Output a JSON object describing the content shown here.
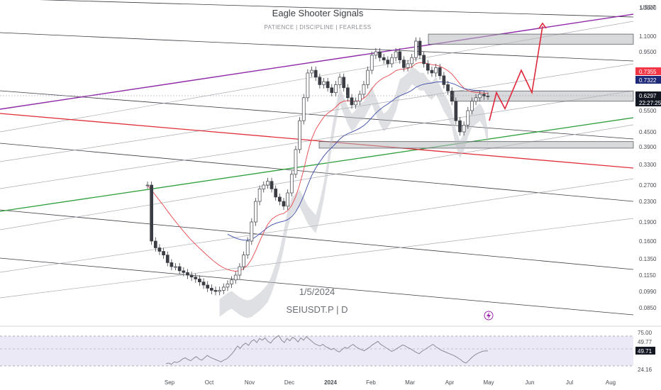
{
  "header": {
    "title": "Eagle Shooter Signals",
    "subtitle": "PATIENCE  |  DISCIPLINE  |  FEARLESS"
  },
  "watermark": {
    "date": "1/5/2024",
    "symbol": "SEIUSDT.P  |  D"
  },
  "colors": {
    "background": "#ffffff",
    "up": "#3b3d44",
    "down": "#3b3d44",
    "ema_fast": "#e8474c",
    "ema_slow": "#3d4aa8",
    "cloud": "#b9bbc0",
    "channel_main": "#8e2aa6",
    "support_green": "#2e9e3a",
    "resistance_red": "#e0303a",
    "projection": "#e0263a",
    "tag_red": "#f23645",
    "tag_navy": "#1e2a78",
    "tag_dark": "#131722",
    "rsi_band": "#ece9f7",
    "rsi_line": "#8a8d94",
    "rsi_overbought_mark": "#26a69a"
  },
  "price_axis": {
    "unit_label": "USDT",
    "ticks": [
      "1.3000",
      "1.1000",
      "0.9500",
      "0.7355",
      "0.7322",
      "0.6297",
      "22:27:25",
      "0.5500",
      "0.4500",
      "0.3900",
      "0.3300",
      "0.2700",
      "0.2300",
      "0.1900",
      "0.1600",
      "0.1350",
      "0.1150",
      "0.0990",
      "0.0850"
    ],
    "price_tags": [
      {
        "label": "0.7355",
        "kind": "red"
      },
      {
        "label": "0.7322",
        "kind": "navy"
      },
      {
        "label": "0.6297",
        "kind": "dark"
      },
      {
        "label": "22:27:25",
        "kind": "dark"
      }
    ],
    "scale": "log"
  },
  "time_axis": {
    "labels": [
      "Sep",
      "Oct",
      "Nov",
      "Dec",
      "2024",
      "Feb",
      "Mar",
      "Apr",
      "May",
      "Jun",
      "Jul",
      "Aug"
    ]
  },
  "rsi": {
    "levels": [
      "75.00",
      "49.77",
      "49.71",
      "24.16"
    ],
    "current": "49.71",
    "values": [
      28,
      29,
      27,
      31,
      30,
      32,
      36,
      38,
      35,
      33,
      37,
      40,
      36,
      34,
      38,
      42,
      39,
      37,
      35,
      33,
      31,
      34,
      36,
      40,
      45,
      51,
      58,
      54,
      60,
      63,
      59,
      66,
      69,
      64,
      71,
      68,
      72,
      66,
      63,
      69,
      73,
      76,
      68,
      64,
      71,
      67,
      73,
      70,
      65,
      72,
      68,
      74,
      70,
      66,
      62,
      60,
      58,
      61,
      57,
      55,
      52,
      54,
      50,
      48,
      52,
      56,
      54,
      58,
      61,
      57,
      54,
      52,
      50,
      53,
      56,
      60,
      63,
      66,
      61,
      58,
      55,
      52,
      49,
      51,
      54,
      57,
      60,
      58,
      55,
      53,
      50,
      47,
      45,
      49,
      52,
      55,
      58,
      61,
      57,
      54,
      51,
      49,
      47,
      45,
      43,
      41,
      38,
      35,
      31,
      29,
      33,
      38,
      42,
      45,
      47,
      49,
      50,
      49.7
    ]
  },
  "chart_data": {
    "type": "candlestick",
    "title": "Eagle Shooter Signals",
    "symbol": "SEIUSDT.P",
    "interval": "D",
    "date_marker": "1/5/2024",
    "y_scale": "log",
    "ylim": [
      0.075,
      1.45
    ],
    "x_labels": [
      "Sep",
      "Oct",
      "Nov",
      "Dec",
      "2024",
      "Feb",
      "Mar",
      "Apr",
      "May",
      "Jun",
      "Jul",
      "Aug"
    ],
    "last_price": 0.6297,
    "countdown": "22:27:25",
    "price_series": [
      0.27,
      0.16,
      0.15,
      0.145,
      0.14,
      0.13,
      0.125,
      0.125,
      0.12,
      0.118,
      0.115,
      0.113,
      0.111,
      0.108,
      0.105,
      0.102,
      0.1,
      0.099,
      0.1,
      0.103,
      0.106,
      0.11,
      0.115,
      0.125,
      0.14,
      0.16,
      0.19,
      0.23,
      0.26,
      0.27,
      0.28,
      0.26,
      0.24,
      0.23,
      0.22,
      0.25,
      0.3,
      0.38,
      0.5,
      0.62,
      0.78,
      0.8,
      0.75,
      0.7,
      0.72,
      0.68,
      0.65,
      0.7,
      0.75,
      0.68,
      0.62,
      0.58,
      0.6,
      0.64,
      0.7,
      0.8,
      0.92,
      0.95,
      0.9,
      0.88,
      0.85,
      0.9,
      0.95,
      0.88,
      0.82,
      0.85,
      0.9,
      1.05,
      0.92,
      0.85,
      0.8,
      0.78,
      0.82,
      0.76,
      0.7,
      0.66,
      0.6,
      0.5,
      0.45,
      0.48,
      0.55,
      0.6,
      0.62,
      0.64,
      0.63,
      0.6297
    ],
    "price_tags": [
      0.7355,
      0.7322,
      0.6297
    ],
    "zones": [
      {
        "from": 1.02,
        "to": 1.12
      },
      {
        "from": 0.6,
        "to": 0.66
      },
      {
        "from": 0.385,
        "to": 0.41
      }
    ],
    "projection_path": [
      0.5,
      0.65,
      0.56,
      0.8,
      0.65,
      1.2
    ],
    "rsi_levels": [
      75,
      24.16
    ],
    "rsi_mid": 49.77,
    "rsi_current": 49.71
  }
}
